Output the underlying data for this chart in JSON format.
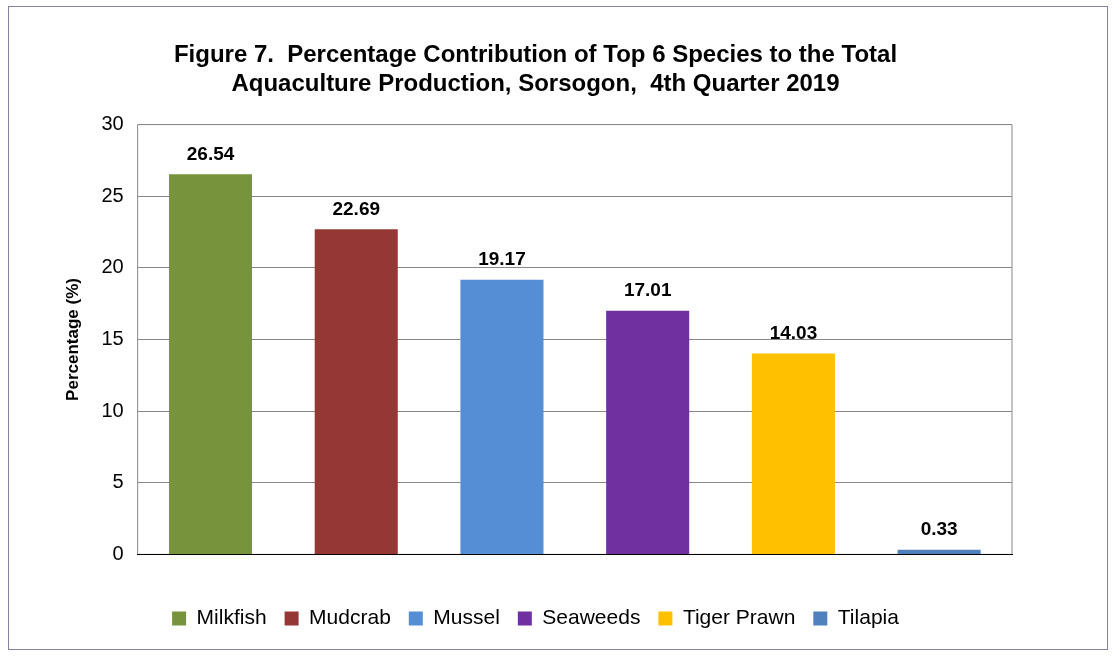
{
  "chart_data": {
    "type": "bar",
    "title": "Figure 7.  Percentage Contribution of Top 6 Species to the Total Aquaculture Production, Sorsogon,  4th Quarter 2019",
    "ylabel": "Percentage (%)",
    "categories": [
      null,
      null,
      null,
      null,
      null,
      null
    ],
    "series": [
      {
        "name": "Milkfish",
        "color": "#77933c",
        "values": [
          26.54,
          null,
          null,
          null,
          null,
          null
        ]
      },
      {
        "name": "Mudcrab",
        "color": "#953735",
        "values": [
          null,
          22.69,
          null,
          null,
          null,
          null
        ]
      },
      {
        "name": "Mussel",
        "color": "#558ed5",
        "values": [
          null,
          null,
          19.17,
          null,
          null,
          null
        ]
      },
      {
        "name": "Seaweeds",
        "color": "#7030a0",
        "values": [
          null,
          null,
          null,
          17.01,
          null,
          null
        ]
      },
      {
        "name": "Tiger Prawn",
        "color": "#ffc000",
        "values": [
          null,
          null,
          null,
          null,
          14.03,
          null
        ]
      },
      {
        "name": "Tilapia",
        "color": "#4f81bd",
        "values": [
          null,
          null,
          null,
          null,
          null,
          0.33
        ]
      }
    ],
    "ylim": [
      0,
      30
    ],
    "yticks": [
      0,
      5,
      10,
      15,
      20,
      25,
      30
    ],
    "grid": "y",
    "legend": "bottom",
    "data_labels": true
  }
}
